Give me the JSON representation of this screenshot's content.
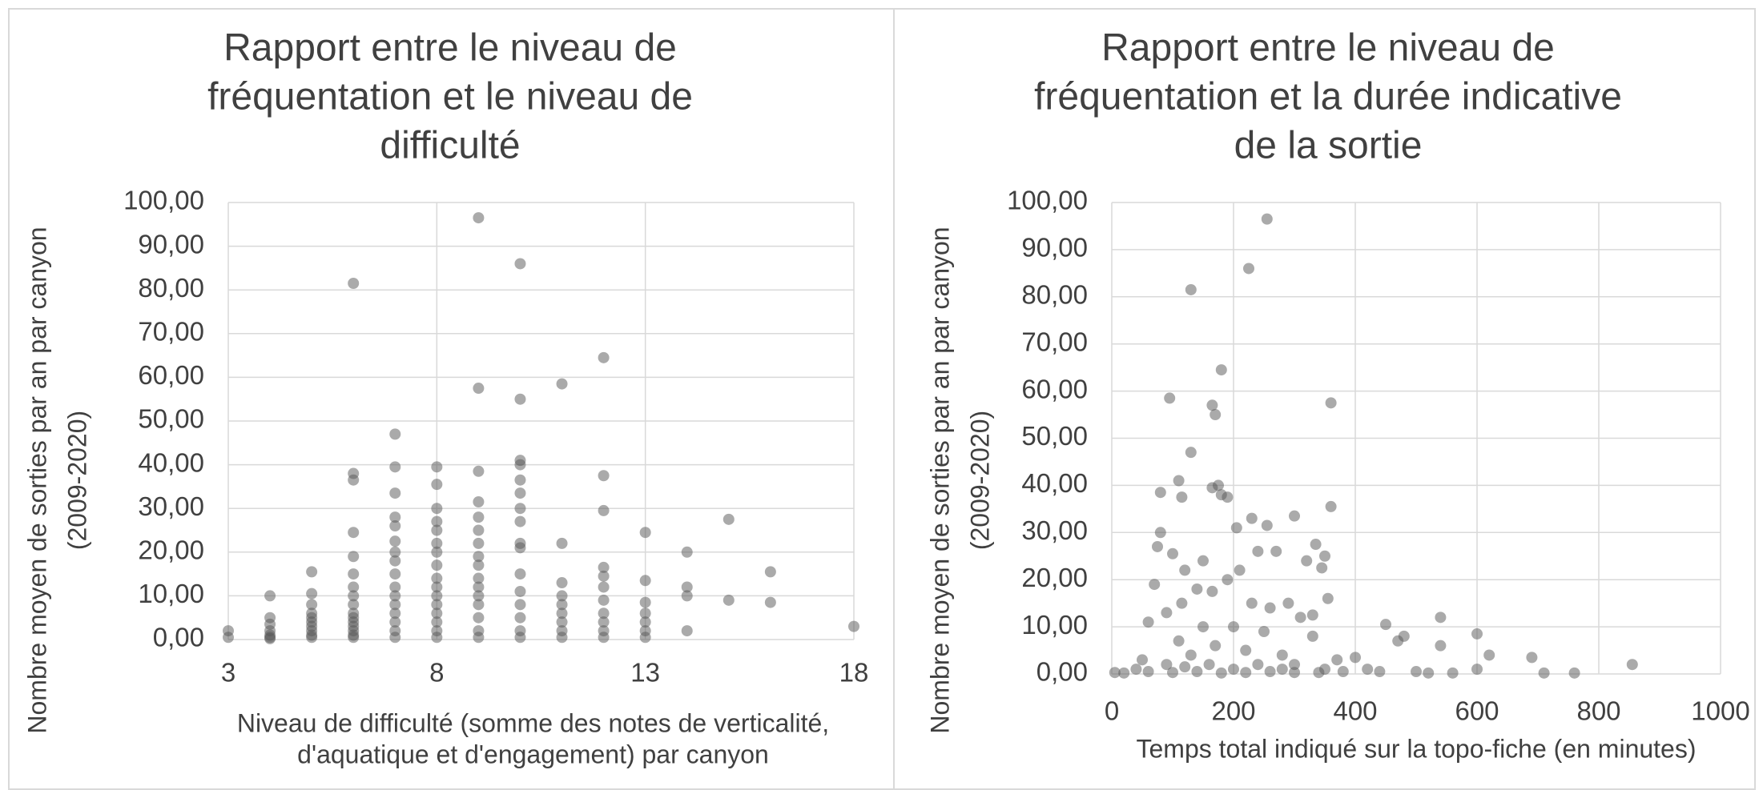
{
  "chart_data": [
    {
      "type": "scatter",
      "title": [
        "Rapport entre le niveau de",
        "fréquentation et le niveau de",
        "difficulté"
      ],
      "x_label": [
        "Niveau de difficulté (somme des notes de verticalité,",
        "d'aquatique et d'engagement) par canyon"
      ],
      "y_label": [
        "Nombre moyen de sorties par an par canyon",
        "(2009-2020)"
      ],
      "color": "#555555",
      "grid": true,
      "xlim": [
        3,
        18
      ],
      "xticks": [
        3,
        8,
        13,
        18
      ],
      "ylim": [
        0,
        100
      ],
      "yticks": [
        {
          "value": 0,
          "label": "0,00"
        },
        {
          "value": 10,
          "label": "10,00"
        },
        {
          "value": 20,
          "label": "20,00"
        },
        {
          "value": 30,
          "label": "30,00"
        },
        {
          "value": 40,
          "label": "40,00"
        },
        {
          "value": 50,
          "label": "50,00"
        },
        {
          "value": 60,
          "label": "60,00"
        },
        {
          "value": 70,
          "label": "70,00"
        },
        {
          "value": 80,
          "label": "80,00"
        },
        {
          "value": 90,
          "label": "90,00"
        },
        {
          "value": 100,
          "label": "100,00"
        }
      ],
      "x": [
        3,
        3,
        4,
        4,
        4,
        4,
        4,
        4,
        4,
        5,
        5,
        5,
        5,
        5,
        5,
        5,
        5,
        5,
        5,
        6,
        6,
        6,
        6,
        6,
        6,
        6,
        6,
        6,
        6,
        6,
        6,
        6,
        6,
        6,
        6,
        7,
        7,
        7,
        7,
        7,
        7,
        7,
        7,
        7,
        7,
        7,
        7,
        7,
        7,
        7,
        7,
        8,
        8,
        8,
        8,
        8,
        8,
        8,
        8,
        8,
        8,
        8,
        8,
        8,
        8,
        8,
        8,
        9,
        9,
        9,
        9,
        9,
        9,
        9,
        9,
        9,
        9,
        9,
        9,
        9,
        9,
        9,
        9,
        10,
        10,
        10,
        10,
        10,
        10,
        10,
        10,
        10,
        10,
        10,
        10,
        10,
        10,
        10,
        10,
        11,
        11,
        11,
        11,
        11,
        11,
        11,
        11,
        11,
        12,
        12,
        12,
        12,
        12,
        12,
        12,
        12,
        12,
        12,
        12,
        13,
        13,
        13,
        13,
        13,
        13,
        13,
        14,
        14,
        14,
        14,
        15,
        15,
        16,
        16,
        18
      ],
      "values": [
        2,
        0.5,
        10,
        5,
        3.5,
        2,
        1,
        0.5,
        0.2,
        15.5,
        10.5,
        8,
        6,
        5,
        4,
        3,
        2,
        1,
        0.5,
        81.5,
        38,
        36.5,
        24.5,
        19,
        15,
        12,
        10,
        8,
        6,
        5,
        4,
        3,
        2,
        1,
        0.5,
        47,
        39.5,
        33.5,
        28,
        26,
        22.5,
        20,
        18,
        15,
        12,
        10,
        8,
        6,
        4,
        2,
        0.5,
        39.5,
        35.5,
        30,
        27,
        25,
        22,
        20,
        17,
        14,
        12,
        10,
        8,
        6,
        4,
        2,
        0.5,
        96.5,
        57.5,
        38.5,
        31.5,
        28,
        25,
        22,
        19,
        17,
        14,
        12,
        10,
        8,
        5,
        2,
        0.5,
        86,
        55,
        41,
        40,
        36.5,
        33.5,
        30,
        27,
        22,
        21,
        15,
        11,
        8,
        5,
        2,
        0.5,
        58.5,
        22,
        13,
        10,
        8,
        6,
        4,
        2,
        0.5,
        64.5,
        37.5,
        29.5,
        16.5,
        14.5,
        12,
        9,
        6,
        4,
        2,
        0.5,
        24.5,
        13.5,
        8.5,
        6,
        4,
        2,
        0.5,
        20,
        12,
        10,
        2,
        27.5,
        9,
        15.5,
        8.5,
        3
      ]
    },
    {
      "type": "scatter",
      "title": [
        "Rapport entre le niveau de",
        "fréquentation et la durée indicative",
        "de la sortie"
      ],
      "x_label": [
        "Temps total indiqué sur la topo-fiche (en minutes)"
      ],
      "y_label": [
        "Nombre moyen de sorties par an par canyon",
        "(2009-2020)"
      ],
      "color": "#555555",
      "grid": true,
      "xlim": [
        0,
        1000
      ],
      "xticks": [
        0,
        200,
        400,
        600,
        800,
        1000
      ],
      "ylim": [
        0,
        100
      ],
      "yticks": [
        {
          "value": 0,
          "label": "0,00"
        },
        {
          "value": 10,
          "label": "10,00"
        },
        {
          "value": 20,
          "label": "20,00"
        },
        {
          "value": 30,
          "label": "30,00"
        },
        {
          "value": 40,
          "label": "40,00"
        },
        {
          "value": 50,
          "label": "50,00"
        },
        {
          "value": 60,
          "label": "60,00"
        },
        {
          "value": 70,
          "label": "70,00"
        },
        {
          "value": 80,
          "label": "80,00"
        },
        {
          "value": 90,
          "label": "90,00"
        },
        {
          "value": 100,
          "label": "100,00"
        }
      ],
      "x": [
        255,
        225,
        130,
        180,
        165,
        170,
        95,
        360,
        130,
        110,
        80,
        115,
        165,
        175,
        180,
        190,
        360,
        300,
        230,
        205,
        255,
        80,
        150,
        75,
        240,
        270,
        335,
        350,
        320,
        100,
        345,
        120,
        210,
        190,
        70,
        140,
        165,
        355,
        230,
        290,
        260,
        330,
        310,
        115,
        90,
        60,
        200,
        150,
        250,
        330,
        110,
        170,
        220,
        280,
        130,
        50,
        90,
        160,
        240,
        300,
        370,
        400,
        450,
        470,
        480,
        540,
        540,
        600,
        620,
        690,
        710,
        760,
        855,
        600,
        560,
        500,
        420,
        380,
        340,
        300,
        260,
        220,
        180,
        140,
        100,
        60,
        20,
        5,
        40,
        120,
        200,
        280,
        350,
        440,
        520
      ],
      "values": [
        96.5,
        86,
        81.5,
        64.5,
        57,
        55,
        58.5,
        57.5,
        47,
        41,
        38.5,
        37.5,
        39.5,
        40,
        38,
        37.5,
        35.5,
        33.5,
        33,
        31,
        31.5,
        30,
        24,
        27,
        26,
        26,
        27.5,
        25,
        24,
        25.5,
        22.5,
        22,
        22,
        20,
        19,
        18,
        17.5,
        16,
        15,
        15,
        14,
        12.5,
        12,
        15,
        13,
        11,
        10,
        10,
        9,
        8,
        7,
        6,
        5,
        4,
        4,
        3,
        2,
        2,
        2,
        2,
        3,
        3.5,
        10.5,
        7,
        8,
        12,
        6,
        8.5,
        4,
        3.5,
        0.2,
        0.2,
        2,
        1,
        0.2,
        0.5,
        1,
        0.5,
        0.3,
        0.3,
        0.5,
        0.3,
        0.2,
        0.5,
        0.3,
        0.5,
        0.2,
        0.3,
        1,
        1.5,
        1,
        1,
        1,
        0.5,
        0.2
      ]
    }
  ]
}
